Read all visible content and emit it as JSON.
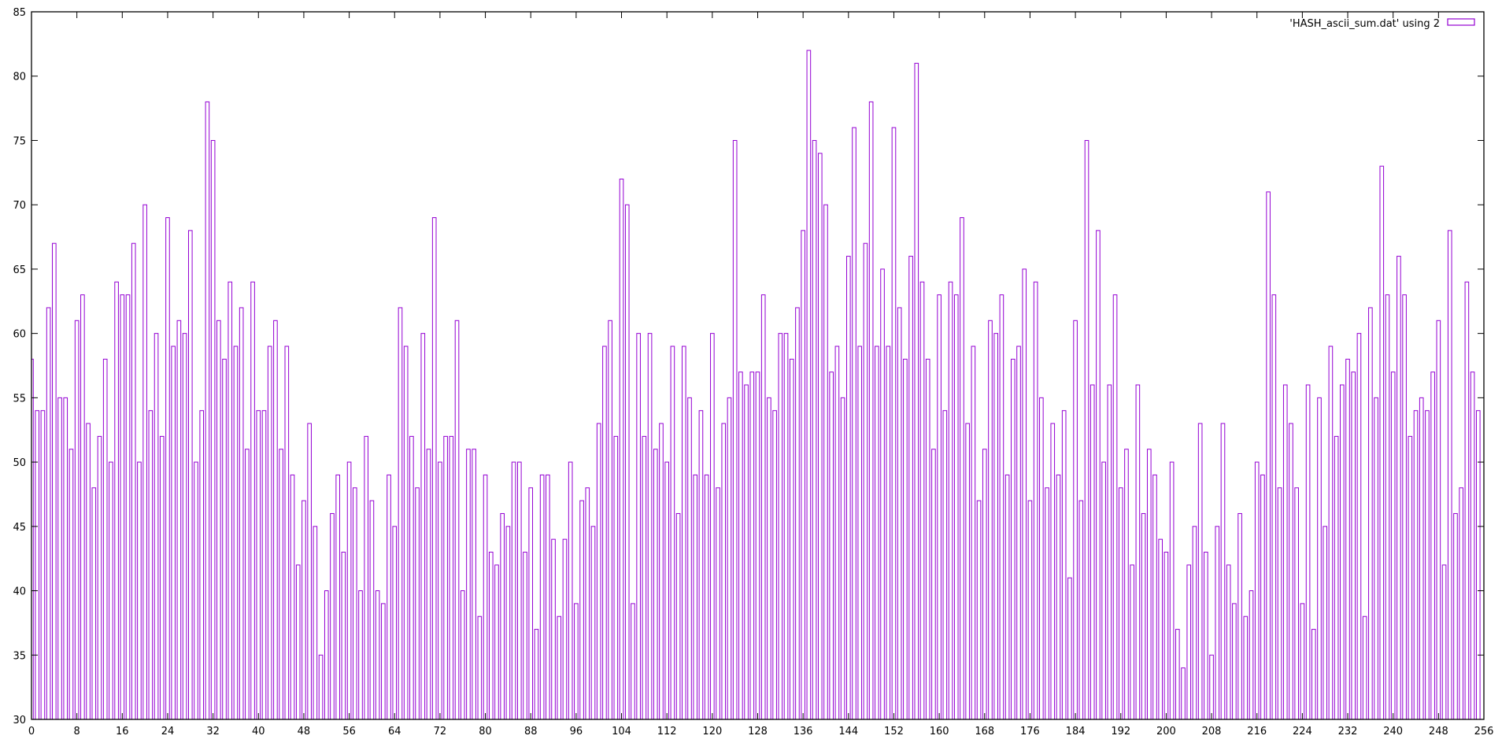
{
  "chart_data": {
    "type": "bar",
    "style": "impulse-boxes",
    "series": [
      {
        "name": "'HASH_ascii_sum.dat' using 2",
        "color": "#9400d3",
        "values": [
          58,
          54,
          54,
          62,
          67,
          55,
          55,
          51,
          61,
          63,
          53,
          48,
          52,
          58,
          50,
          64,
          63,
          63,
          67,
          50,
          70,
          54,
          60,
          52,
          69,
          59,
          61,
          60,
          68,
          50,
          54,
          78,
          75,
          61,
          58,
          64,
          59,
          62,
          51,
          64,
          54,
          54,
          59,
          61,
          51,
          59,
          49,
          42,
          47,
          53,
          45,
          35,
          40,
          46,
          49,
          43,
          50,
          48,
          40,
          52,
          47,
          40,
          39,
          49,
          45,
          62,
          59,
          52,
          48,
          60,
          51,
          69,
          50,
          52,
          52,
          61,
          40,
          51,
          51,
          38,
          49,
          43,
          42,
          46,
          45,
          50,
          50,
          43,
          48,
          37,
          49,
          49,
          44,
          38,
          44,
          50,
          39,
          47,
          48,
          45,
          53,
          59,
          61,
          52,
          72,
          70,
          39,
          60,
          52,
          60,
          51,
          53,
          50,
          59,
          46,
          59,
          55,
          49,
          54,
          49,
          60,
          48,
          53,
          55,
          75,
          57,
          56,
          57,
          57,
          63,
          55,
          54,
          60,
          60,
          58,
          62,
          68,
          82,
          75,
          74,
          70,
          57,
          59,
          55,
          66,
          76,
          59,
          67,
          78,
          59,
          65,
          59,
          76,
          62,
          58,
          66,
          81,
          64,
          58,
          51,
          63,
          54,
          64,
          63,
          69,
          53,
          59,
          47,
          51,
          61,
          60,
          63,
          49,
          58,
          59,
          65,
          47,
          64,
          55,
          48,
          53,
          49,
          54,
          41,
          61,
          47,
          75,
          56,
          68,
          50,
          56,
          63,
          48,
          51,
          42,
          56,
          46,
          51,
          49,
          44,
          43,
          50,
          37,
          34,
          42,
          45,
          53,
          43,
          35,
          45,
          53,
          42,
          39,
          46,
          38,
          40,
          50,
          49,
          71,
          63,
          48,
          56,
          53,
          48,
          39,
          56,
          37,
          55,
          45,
          59,
          52,
          56,
          58,
          57,
          60,
          38,
          62,
          55,
          73,
          63,
          57,
          66,
          63,
          52,
          54,
          55,
          54,
          57,
          61,
          42,
          68,
          46,
          48,
          64,
          57,
          54
        ]
      }
    ],
    "x_start": 0,
    "xlim": [
      0,
      256
    ],
    "ylim": [
      30,
      85
    ],
    "xticks": [
      "0",
      "8",
      "16",
      "24",
      "32",
      "40",
      "48",
      "56",
      "64",
      "72",
      "80",
      "88",
      "96",
      "104",
      "112",
      "120",
      "128",
      "136",
      "144",
      "152",
      "160",
      "168",
      "176",
      "184",
      "192",
      "200",
      "208",
      "216",
      "224",
      "232",
      "240",
      "248",
      "256"
    ],
    "yticks": [
      "30",
      "35",
      "40",
      "45",
      "50",
      "55",
      "60",
      "65",
      "70",
      "75",
      "80",
      "85"
    ],
    "legend_position": "top-right",
    "grid": false
  }
}
